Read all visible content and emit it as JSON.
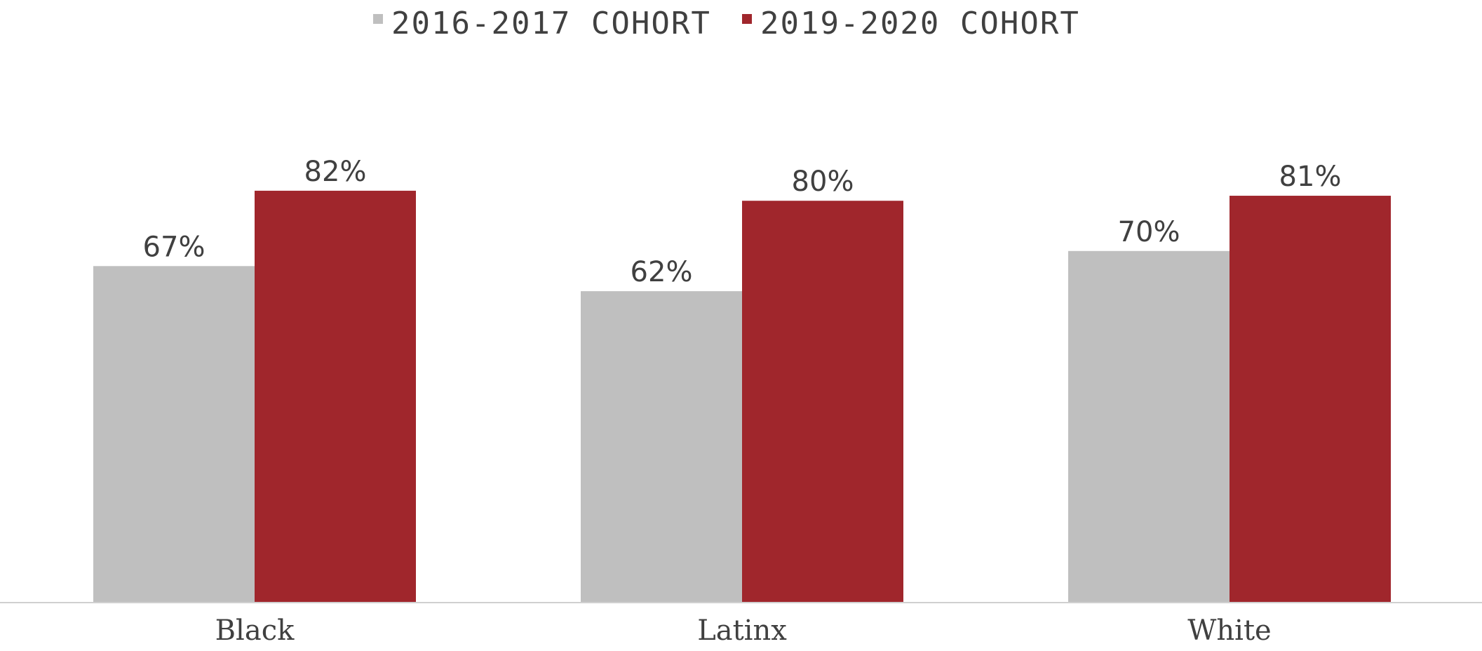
{
  "chart_data": {
    "type": "bar",
    "categories": [
      "Black",
      "Latinx",
      "White"
    ],
    "series": [
      {
        "name": "2016-2017 COHORT",
        "values": [
          67,
          62,
          70
        ],
        "color": "#bfbfbf"
      },
      {
        "name": "2019-2020 COHORT",
        "values": [
          82,
          80,
          81
        ],
        "color": "#a0262c"
      }
    ],
    "data_labels": [
      [
        "67%",
        "62%",
        "70%"
      ],
      [
        "82%",
        "80%",
        "81%"
      ]
    ],
    "legend_position": "top",
    "grid": false,
    "colors": {
      "axis": "#d0d0d0",
      "text": "#404040"
    }
  }
}
